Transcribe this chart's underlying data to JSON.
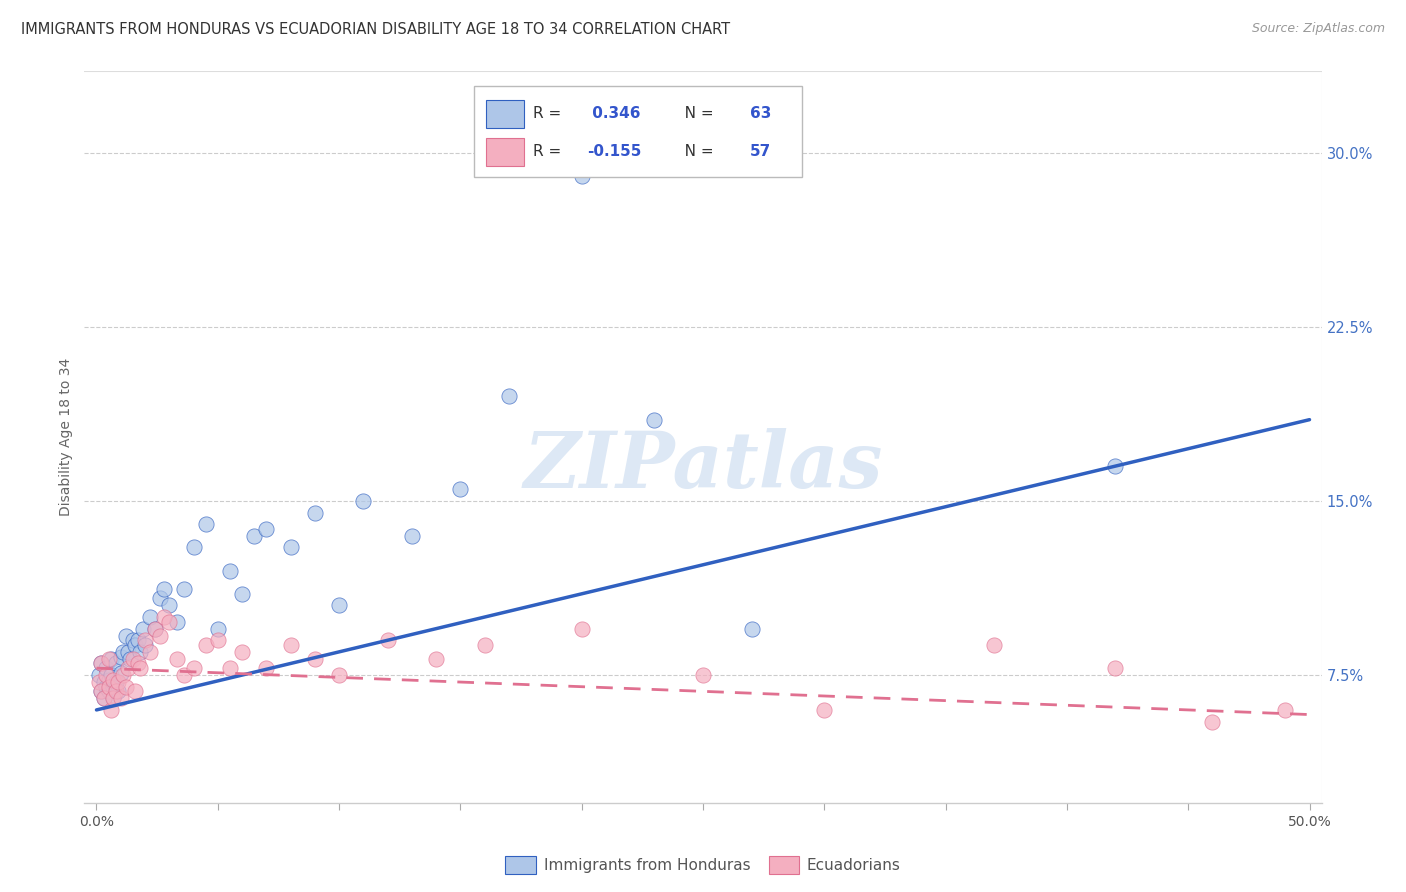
{
  "title": "IMMIGRANTS FROM HONDURAS VS ECUADORIAN DISABILITY AGE 18 TO 34 CORRELATION CHART",
  "source": "Source: ZipAtlas.com",
  "ylabel": "Disability Age 18 to 34",
  "ytick_labels": [
    "7.5%",
    "15.0%",
    "22.5%",
    "30.0%"
  ],
  "ytick_values": [
    0.075,
    0.15,
    0.225,
    0.3
  ],
  "xlim": [
    -0.005,
    0.505
  ],
  "ylim": [
    0.02,
    0.335
  ],
  "legend_label1": "Immigrants from Honduras",
  "legend_label2": "Ecuadorians",
  "color_blue": "#aec6e8",
  "color_pink": "#f4afc0",
  "line_blue": "#3060c0",
  "line_pink": "#e07090",
  "watermark": "ZIPatlas",
  "watermark_color": "#dde8f5",
  "blue_x": [
    0.001,
    0.002,
    0.002,
    0.003,
    0.003,
    0.004,
    0.004,
    0.005,
    0.005,
    0.006,
    0.006,
    0.007,
    0.007,
    0.008,
    0.008,
    0.009,
    0.01,
    0.01,
    0.011,
    0.012,
    0.013,
    0.014,
    0.015,
    0.016,
    0.017,
    0.018,
    0.019,
    0.02,
    0.022,
    0.024,
    0.026,
    0.028,
    0.03,
    0.033,
    0.036,
    0.04,
    0.045,
    0.05,
    0.055,
    0.06,
    0.065,
    0.07,
    0.08,
    0.09,
    0.1,
    0.11,
    0.13,
    0.15,
    0.17,
    0.2,
    0.23,
    0.27,
    0.42
  ],
  "blue_y": [
    0.075,
    0.08,
    0.068,
    0.072,
    0.065,
    0.078,
    0.07,
    0.073,
    0.068,
    0.082,
    0.075,
    0.07,
    0.065,
    0.08,
    0.072,
    0.068,
    0.083,
    0.076,
    0.085,
    0.092,
    0.085,
    0.082,
    0.09,
    0.088,
    0.09,
    0.085,
    0.095,
    0.088,
    0.1,
    0.095,
    0.108,
    0.112,
    0.105,
    0.098,
    0.112,
    0.13,
    0.14,
    0.095,
    0.12,
    0.11,
    0.135,
    0.138,
    0.13,
    0.145,
    0.105,
    0.15,
    0.135,
    0.155,
    0.195,
    0.29,
    0.185,
    0.095,
    0.165
  ],
  "pink_x": [
    0.001,
    0.002,
    0.002,
    0.003,
    0.004,
    0.005,
    0.005,
    0.006,
    0.007,
    0.007,
    0.008,
    0.009,
    0.01,
    0.011,
    0.012,
    0.013,
    0.015,
    0.016,
    0.017,
    0.018,
    0.02,
    0.022,
    0.024,
    0.026,
    0.028,
    0.03,
    0.033,
    0.036,
    0.04,
    0.045,
    0.05,
    0.055,
    0.06,
    0.07,
    0.08,
    0.09,
    0.1,
    0.12,
    0.14,
    0.16,
    0.2,
    0.25,
    0.3,
    0.37,
    0.42,
    0.46,
    0.49
  ],
  "pink_y": [
    0.072,
    0.068,
    0.08,
    0.065,
    0.075,
    0.07,
    0.082,
    0.06,
    0.073,
    0.065,
    0.068,
    0.072,
    0.065,
    0.075,
    0.07,
    0.078,
    0.082,
    0.068,
    0.08,
    0.078,
    0.09,
    0.085,
    0.095,
    0.092,
    0.1,
    0.098,
    0.082,
    0.075,
    0.078,
    0.088,
    0.09,
    0.078,
    0.085,
    0.078,
    0.088,
    0.082,
    0.075,
    0.09,
    0.082,
    0.088,
    0.095,
    0.075,
    0.06,
    0.088,
    0.078,
    0.055,
    0.06
  ],
  "blue_trend_x": [
    0.0,
    0.5
  ],
  "blue_trend_y": [
    0.06,
    0.185
  ],
  "pink_trend_x": [
    0.0,
    0.5
  ],
  "pink_trend_y": [
    0.078,
    0.058
  ]
}
